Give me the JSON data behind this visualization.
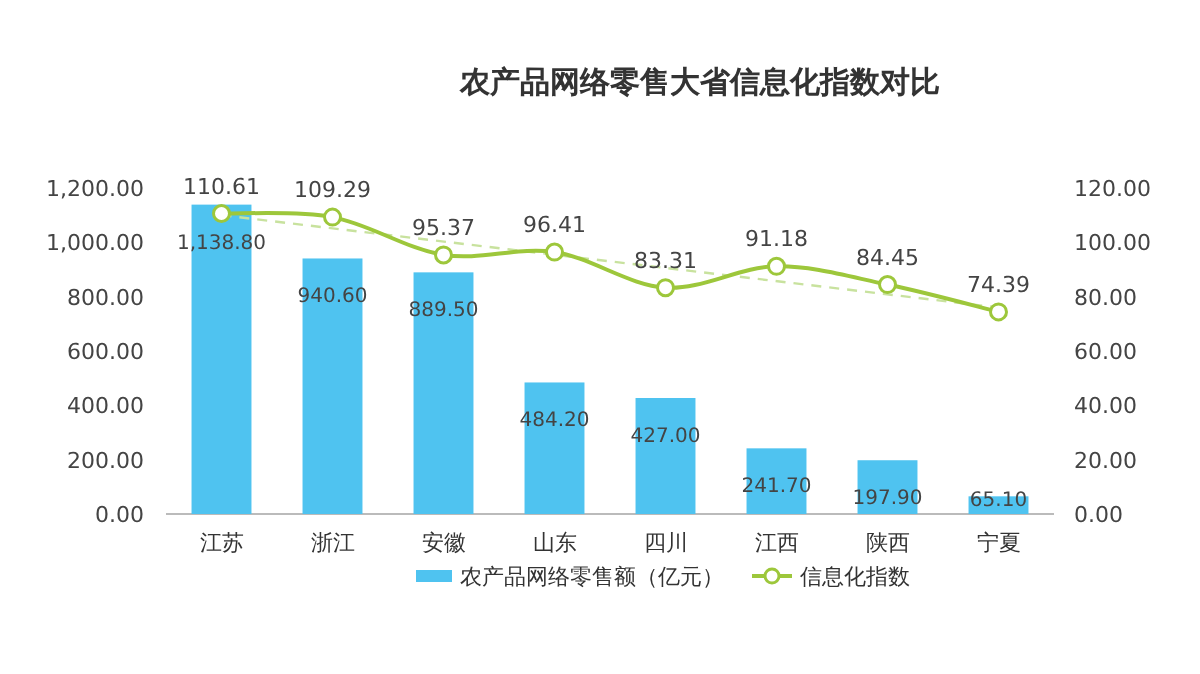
{
  "chart_data": {
    "type": "bar",
    "title": "农产品网络零售大省信息化指数对比",
    "categories": [
      "江苏",
      "浙江",
      "安徽",
      "山东",
      "四川",
      "江西",
      "陕西",
      "宁夏"
    ],
    "series": [
      {
        "name": "农产品网络零售额（亿元）",
        "color": "#4fc3f0",
        "values": [
          1138.8,
          940.6,
          889.5,
          484.2,
          427.0,
          241.7,
          197.9,
          65.1
        ],
        "value_labels": [
          "1,138.80",
          "940.60",
          "889.50",
          "484.20",
          "427.00",
          "241.70",
          "197.90",
          "65.10"
        ]
      },
      {
        "name": "信息化指数",
        "type": "line",
        "axis": "y2",
        "color": "#9dc73b",
        "marker": "circle",
        "values": [
          110.61,
          109.29,
          95.37,
          96.41,
          83.31,
          91.18,
          84.45,
          74.39
        ],
        "value_labels": [
          "110.61",
          "109.29",
          "95.37",
          "96.41",
          "83.31",
          "91.18",
          "84.45",
          "74.39"
        ]
      },
      {
        "type": "line",
        "axis": "y2",
        "color": "#c8e29e",
        "line_style": "dashed",
        "marker": "none",
        "x": [
          "江苏",
          "宁夏"
        ],
        "values": [
          110,
          76
        ]
      }
    ],
    "ylim": [
      0,
      1200
    ],
    "yticks": [
      {
        "value": 0,
        "label": "0.00"
      },
      {
        "value": 200,
        "label": "200.00"
      },
      {
        "value": 400,
        "label": "400.00"
      },
      {
        "value": 600,
        "label": "600.00"
      },
      {
        "value": 800,
        "label": "800.00"
      },
      {
        "value": 1000,
        "label": "1,000.00"
      },
      {
        "value": 1200,
        "label": "1,200.00"
      }
    ],
    "y2lim": [
      0,
      120
    ],
    "y2ticks": [
      {
        "value": 0,
        "label": "0.00"
      },
      {
        "value": 20,
        "label": "20.00"
      },
      {
        "value": 40,
        "label": "40.00"
      },
      {
        "value": 60,
        "label": "60.00"
      },
      {
        "value": 80,
        "label": "80.00"
      },
      {
        "value": 100,
        "label": "100.00"
      },
      {
        "value": 120,
        "label": "120.00"
      }
    ],
    "legend": "bottom",
    "grid": false
  }
}
